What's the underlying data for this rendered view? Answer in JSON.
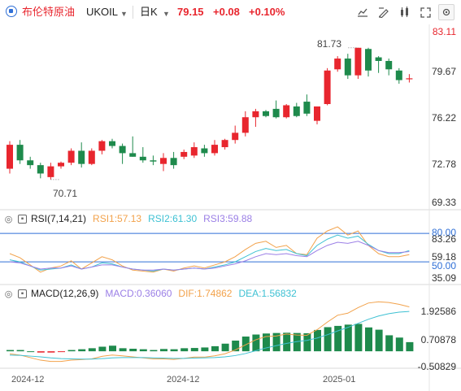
{
  "toolbar": {
    "symbol_name": "布伦特原油",
    "ticker": "UKOIL",
    "period": "日K",
    "price": "79.15",
    "change": "+0.08",
    "change_pct": "+0.10%",
    "up_color": "#e8262e",
    "icons": [
      "chart-style-icon",
      "draw-tool-icon",
      "indicator-icon",
      "fullscreen-icon",
      "settings-icon"
    ]
  },
  "price_axis": [
    "83.11",
    "79.67",
    "76.22",
    "72.78",
    "69.33"
  ],
  "annotations": {
    "high": "81.73",
    "low": "70.71"
  },
  "rsi": {
    "title": "RSI(7,14,21)",
    "rsi1": "RSI1:57.13",
    "rsi2": "RSI2:61.30",
    "rsi3": "RSI3:59.88",
    "axis": [
      "80.00",
      "83.26",
      "59.18",
      "50.00",
      "35.09"
    ],
    "colors": {
      "rsi1": "#f2a24b",
      "rsi2": "#3ec1d3",
      "rsi3": "#9b7fe6"
    }
  },
  "macd": {
    "title": "MACD(12,26,9)",
    "macd": "MACD:0.36060",
    "dif": "DIF:1.74862",
    "dea": "DEA:1.56832",
    "axis": [
      "1.92586",
      "0.70878",
      "-0.50829"
    ],
    "colors": {
      "macd": "#9b7fe6",
      "dif": "#f2a24b",
      "dea": "#3ec1d3"
    }
  },
  "x_axis": [
    "2024-12",
    "2024-12",
    "2025-01"
  ],
  "chart_data": {
    "type": "candlestick",
    "candles": [
      {
        "o": 71.6,
        "h": 73.9,
        "l": 71.2,
        "c": 73.6
      },
      {
        "o": 73.6,
        "h": 74.0,
        "l": 72.0,
        "c": 72.3
      },
      {
        "o": 72.3,
        "h": 72.6,
        "l": 71.6,
        "c": 71.9
      },
      {
        "o": 71.9,
        "h": 72.1,
        "l": 70.8,
        "c": 71.2
      },
      {
        "o": 70.9,
        "h": 72.1,
        "l": 70.7,
        "c": 71.8
      },
      {
        "o": 71.8,
        "h": 72.2,
        "l": 71.6,
        "c": 72.1
      },
      {
        "o": 72.1,
        "h": 73.3,
        "l": 71.9,
        "c": 73.1
      },
      {
        "o": 73.1,
        "h": 73.8,
        "l": 71.7,
        "c": 72.0
      },
      {
        "o": 72.0,
        "h": 73.3,
        "l": 71.9,
        "c": 73.1
      },
      {
        "o": 73.1,
        "h": 74.0,
        "l": 72.8,
        "c": 73.9
      },
      {
        "o": 73.9,
        "h": 74.1,
        "l": 73.3,
        "c": 73.5
      },
      {
        "o": 73.5,
        "h": 73.7,
        "l": 72.0,
        "c": 72.9
      },
      {
        "o": 72.9,
        "h": 74.3,
        "l": 72.6,
        "c": 72.6
      },
      {
        "o": 72.6,
        "h": 73.4,
        "l": 72.1,
        "c": 72.3
      },
      {
        "o": 72.3,
        "h": 72.7,
        "l": 71.9,
        "c": 72.2
      },
      {
        "o": 72.0,
        "h": 72.9,
        "l": 71.4,
        "c": 72.5
      },
      {
        "o": 72.5,
        "h": 73.0,
        "l": 71.6,
        "c": 71.9
      },
      {
        "o": 72.6,
        "h": 73.2,
        "l": 72.4,
        "c": 73.0
      },
      {
        "o": 72.7,
        "h": 73.8,
        "l": 72.5,
        "c": 73.4
      },
      {
        "o": 73.3,
        "h": 73.6,
        "l": 72.6,
        "c": 72.9
      },
      {
        "o": 72.9,
        "h": 74.0,
        "l": 72.7,
        "c": 73.6
      },
      {
        "o": 73.4,
        "h": 74.1,
        "l": 73.2,
        "c": 74.0
      },
      {
        "o": 74.0,
        "h": 75.2,
        "l": 73.7,
        "c": 74.6
      },
      {
        "o": 74.6,
        "h": 76.4,
        "l": 74.3,
        "c": 75.9
      },
      {
        "o": 75.9,
        "h": 76.6,
        "l": 75.1,
        "c": 76.4
      },
      {
        "o": 76.4,
        "h": 76.5,
        "l": 75.9,
        "c": 76.0
      },
      {
        "o": 76.6,
        "h": 77.3,
        "l": 75.8,
        "c": 75.9
      },
      {
        "o": 75.9,
        "h": 77.0,
        "l": 75.8,
        "c": 76.9
      },
      {
        "o": 76.8,
        "h": 77.1,
        "l": 75.9,
        "c": 76.0
      },
      {
        "o": 77.2,
        "h": 77.8,
        "l": 76.0,
        "c": 76.2
      },
      {
        "o": 75.6,
        "h": 76.8,
        "l": 75.3,
        "c": 76.8
      },
      {
        "o": 77.0,
        "h": 80.0,
        "l": 76.9,
        "c": 79.8
      },
      {
        "o": 79.9,
        "h": 81.0,
        "l": 79.7,
        "c": 80.8
      },
      {
        "o": 80.8,
        "h": 81.2,
        "l": 79.1,
        "c": 79.4
      },
      {
        "o": 79.4,
        "h": 81.7,
        "l": 79.1,
        "c": 81.7
      },
      {
        "o": 81.6,
        "h": 81.7,
        "l": 79.3,
        "c": 79.8
      },
      {
        "o": 80.9,
        "h": 81.0,
        "l": 79.6,
        "c": 80.6
      },
      {
        "o": 80.6,
        "h": 80.8,
        "l": 79.4,
        "c": 79.9
      },
      {
        "o": 79.8,
        "h": 80.0,
        "l": 78.7,
        "c": 79.0
      },
      {
        "o": 79.07,
        "h": 79.5,
        "l": 78.8,
        "c": 79.15
      }
    ],
    "rsi1": [
      58,
      54,
      47,
      40,
      44,
      46,
      51,
      43,
      49,
      55,
      52,
      46,
      42,
      41,
      40,
      43,
      41,
      44,
      46,
      44,
      47,
      50,
      55,
      62,
      68,
      70,
      64,
      66,
      58,
      57,
      73,
      80,
      84,
      76,
      80,
      66,
      58,
      55,
      55,
      57
    ],
    "rsi2": [
      52,
      50,
      46,
      42,
      43,
      44,
      47,
      43,
      45,
      49,
      48,
      45,
      43,
      42,
      41,
      43,
      42,
      43,
      44,
      43,
      45,
      47,
      50,
      55,
      60,
      63,
      61,
      62,
      58,
      56,
      66,
      72,
      76,
      73,
      75,
      67,
      61,
      58,
      58,
      61
    ],
    "rsi3": [
      50,
      49,
      46,
      43,
      44,
      44,
      46,
      43,
      45,
      47,
      47,
      45,
      43,
      42,
      42,
      43,
      42,
      43,
      44,
      43,
      44,
      46,
      48,
      51,
      55,
      58,
      57,
      58,
      56,
      55,
      61,
      66,
      69,
      68,
      70,
      66,
      61,
      59,
      59,
      60
    ],
    "macd_hist": [
      0.05,
      0.05,
      0.0,
      -0.05,
      -0.05,
      -0.02,
      0.05,
      0.08,
      0.12,
      0.18,
      0.22,
      0.12,
      0.1,
      0.08,
      0.05,
      0.09,
      0.08,
      0.12,
      0.13,
      0.15,
      0.2,
      0.3,
      0.42,
      0.58,
      0.66,
      0.7,
      0.72,
      0.73,
      0.72,
      0.71,
      0.84,
      0.95,
      1.0,
      1.05,
      1.08,
      0.94,
      0.85,
      0.63,
      0.54,
      0.36
    ],
    "dif": [
      -0.1,
      -0.15,
      -0.25,
      -0.35,
      -0.4,
      -0.4,
      -0.35,
      -0.33,
      -0.3,
      -0.2,
      -0.15,
      -0.18,
      -0.22,
      -0.26,
      -0.3,
      -0.3,
      -0.32,
      -0.28,
      -0.23,
      -0.23,
      -0.18,
      -0.1,
      0.05,
      0.25,
      0.45,
      0.58,
      0.6,
      0.68,
      0.64,
      0.63,
      0.85,
      1.15,
      1.42,
      1.5,
      1.72,
      1.9,
      1.95,
      1.92,
      1.85,
      1.75
    ],
    "dea": [
      -0.15,
      -0.16,
      -0.19,
      -0.22,
      -0.26,
      -0.29,
      -0.3,
      -0.31,
      -0.31,
      -0.29,
      -0.26,
      -0.25,
      -0.25,
      -0.25,
      -0.26,
      -0.27,
      -0.28,
      -0.28,
      -0.27,
      -0.26,
      -0.25,
      -0.22,
      -0.17,
      -0.09,
      0.02,
      0.13,
      0.22,
      0.31,
      0.38,
      0.43,
      0.52,
      0.65,
      0.8,
      0.94,
      1.1,
      1.26,
      1.39,
      1.48,
      1.54,
      1.57
    ],
    "price_range": [
      69.33,
      83.11
    ],
    "rsi_range": [
      35.09,
      83.26
    ],
    "macd_range": [
      -0.50829,
      1.92586
    ]
  }
}
